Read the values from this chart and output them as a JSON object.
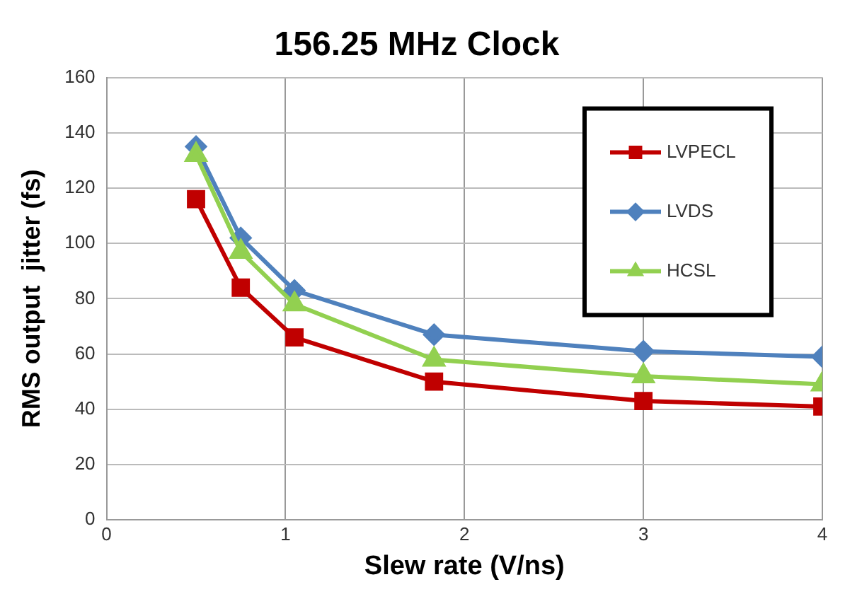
{
  "chart_data": {
    "type": "line",
    "title": "156.25 MHz Clock",
    "xlabel": "Slew rate (V/ns)",
    "ylabel": "RMS output  jitter (fs)",
    "x": [
      0.5,
      0.75,
      1.05,
      1.83,
      3,
      4
    ],
    "series": [
      {
        "name": "LVPECL",
        "color": "#c00000",
        "marker": "square",
        "values": [
          116,
          84,
          66,
          50,
          43,
          41
        ]
      },
      {
        "name": "LVDS",
        "color": "#4f81bd",
        "marker": "diamond",
        "values": [
          135,
          102,
          83,
          67,
          61,
          59
        ]
      },
      {
        "name": "HCSL",
        "color": "#92d050",
        "marker": "triangle",
        "values": [
          132,
          97,
          78,
          58,
          52,
          49
        ]
      }
    ],
    "xlim": [
      0,
      4
    ],
    "xticks": [
      0,
      1,
      2,
      3,
      4
    ],
    "ylim": [
      0,
      160
    ],
    "yticks": [
      0,
      20,
      40,
      60,
      80,
      100,
      120,
      140,
      160
    ],
    "grid": true,
    "legend": "top right",
    "line_style": "solid"
  }
}
